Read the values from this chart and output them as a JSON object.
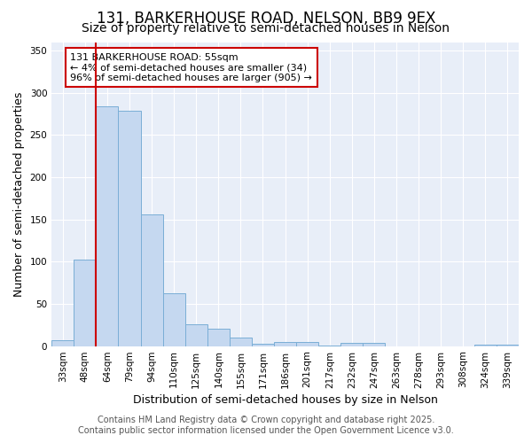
{
  "title": "131, BARKERHOUSE ROAD, NELSON, BB9 9EX",
  "subtitle": "Size of property relative to semi-detached houses in Nelson",
  "xlabel": "Distribution of semi-detached houses by size in Nelson",
  "ylabel": "Number of semi-detached properties",
  "categories": [
    "33sqm",
    "48sqm",
    "64sqm",
    "79sqm",
    "94sqm",
    "110sqm",
    "125sqm",
    "140sqm",
    "155sqm",
    "171sqm",
    "186sqm",
    "201sqm",
    "217sqm",
    "232sqm",
    "247sqm",
    "263sqm",
    "278sqm",
    "293sqm",
    "308sqm",
    "324sqm",
    "339sqm"
  ],
  "values": [
    7,
    102,
    284,
    279,
    156,
    63,
    26,
    21,
    10,
    3,
    5,
    5,
    1,
    4,
    4,
    0,
    0,
    0,
    0,
    2,
    2
  ],
  "bar_color": "#c5d8f0",
  "bar_edge_color": "#7aaed6",
  "vline_color": "#cc0000",
  "annotation_text": "131 BARKERHOUSE ROAD: 55sqm\n← 4% of semi-detached houses are smaller (34)\n96% of semi-detached houses are larger (905) →",
  "annotation_box_color": "#ffffff",
  "annotation_box_edge": "#cc0000",
  "footer1": "Contains HM Land Registry data © Crown copyright and database right 2025.",
  "footer2": "Contains public sector information licensed under the Open Government Licence v3.0.",
  "ylim": [
    0,
    360
  ],
  "yticks": [
    0,
    50,
    100,
    150,
    200,
    250,
    300,
    350
  ],
  "background_color": "#ffffff",
  "plot_bg_color": "#e8eef8",
  "grid_color": "#ffffff",
  "title_fontsize": 12,
  "subtitle_fontsize": 10,
  "axis_label_fontsize": 9,
  "tick_fontsize": 7.5,
  "footer_fontsize": 7,
  "annotation_fontsize": 8
}
